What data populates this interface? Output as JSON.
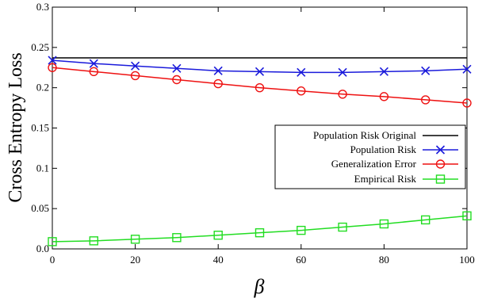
{
  "chart_data": {
    "type": "line",
    "xlabel": "β",
    "ylabel": "Cross Entropy Loss",
    "xlim": [
      0,
      100
    ],
    "ylim": [
      0,
      0.3
    ],
    "x_ticks": [
      "0",
      "20",
      "40",
      "60",
      "80",
      "100"
    ],
    "x_tick_values": [
      0,
      20,
      40,
      60,
      80,
      100
    ],
    "y_ticks": [
      "0.0",
      "0.05",
      "0.1",
      "0.15",
      "0.2",
      "0.25",
      "0.3"
    ],
    "y_tick_values": [
      0,
      0.05,
      0.1,
      0.15,
      0.2,
      0.25,
      0.3
    ],
    "grid": false,
    "legend_position": "right",
    "x": [
      0,
      10,
      20,
      30,
      40,
      50,
      60,
      70,
      80,
      90,
      100
    ],
    "series": [
      {
        "name": "Population Risk Original",
        "color": "#000000",
        "marker": "none",
        "values": [
          0.237,
          0.237,
          0.237,
          0.237,
          0.237,
          0.237,
          0.237,
          0.237,
          0.237,
          0.237,
          0.237
        ]
      },
      {
        "name": "Population Risk",
        "color": "#1a1adb",
        "marker": "x",
        "values": [
          0.234,
          0.23,
          0.227,
          0.224,
          0.221,
          0.22,
          0.219,
          0.219,
          0.22,
          0.221,
          0.223
        ]
      },
      {
        "name": "Generalization Error",
        "color": "#ee1111",
        "marker": "circle",
        "values": [
          0.225,
          0.22,
          0.215,
          0.21,
          0.205,
          0.2,
          0.196,
          0.192,
          0.189,
          0.185,
          0.181
        ]
      },
      {
        "name": "Empirical Risk",
        "color": "#22dd22",
        "marker": "square",
        "values": [
          0.009,
          0.01,
          0.012,
          0.014,
          0.017,
          0.02,
          0.023,
          0.027,
          0.031,
          0.036,
          0.041
        ]
      }
    ]
  }
}
